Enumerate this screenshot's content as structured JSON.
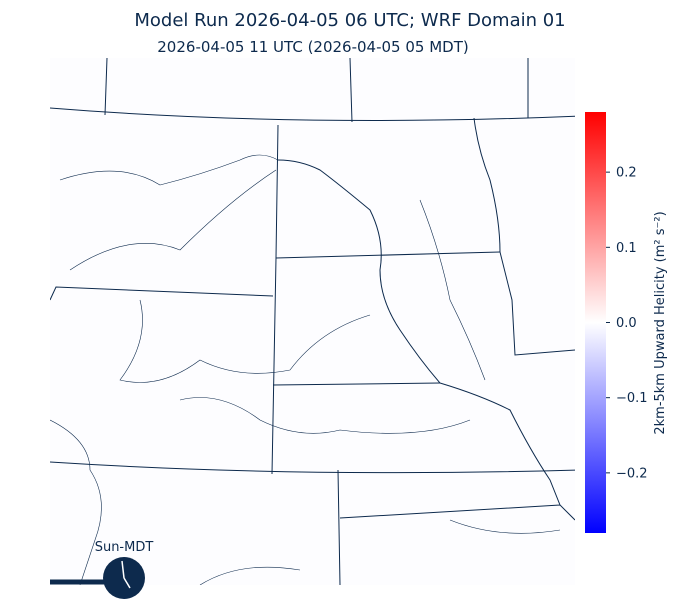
{
  "header": {
    "title": "Model Run 2026-04-05 06 UTC; WRF Domain 01",
    "subtitle": "2026-04-05 11 UTC  (2026-04-05 05 MDT)"
  },
  "colorbar": {
    "label": "2km-5km Upward Helicity (m² s⁻²)",
    "lim": [
      -0.28,
      0.28
    ],
    "colors": [
      "#0000ff",
      "#ffffff",
      "#ff0000"
    ],
    "ticks": [
      {
        "value": -0.2,
        "label": "−0.2"
      },
      {
        "value": -0.1,
        "label": "−0.1"
      },
      {
        "value": 0,
        "label": "0.0"
      },
      0.1,
      0.2
    ]
  },
  "clock": {
    "label": "Sun-MDT"
  }
}
